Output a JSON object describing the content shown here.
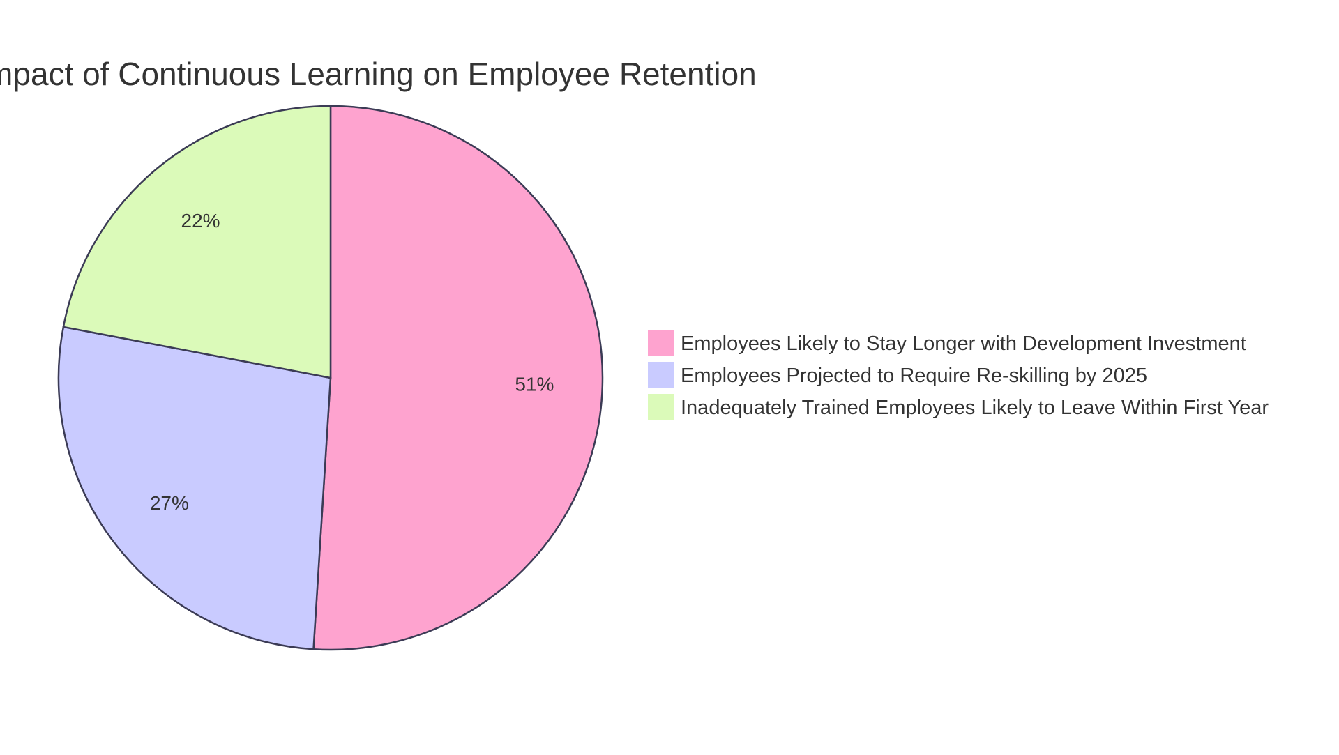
{
  "chart_data": {
    "type": "pie",
    "title": "Impact of Continuous Learning on Employee Retention",
    "slices": [
      {
        "label": "Employees Likely to Stay Longer with Development Investment",
        "value": 51,
        "display": "51%",
        "color": "#fea3cf"
      },
      {
        "label": "Employees Projected to Require Re-skilling by 2025",
        "value": 27,
        "display": "27%",
        "color": "#c9cbff"
      },
      {
        "label": "Inadequately Trained Employees Likely to Leave Within First Year",
        "value": 22,
        "display": "22%",
        "color": "#dbfab9"
      }
    ],
    "legend_position": "right",
    "start_angle": "top",
    "direction": "clockwise",
    "stroke_color": "#3b3b55"
  }
}
